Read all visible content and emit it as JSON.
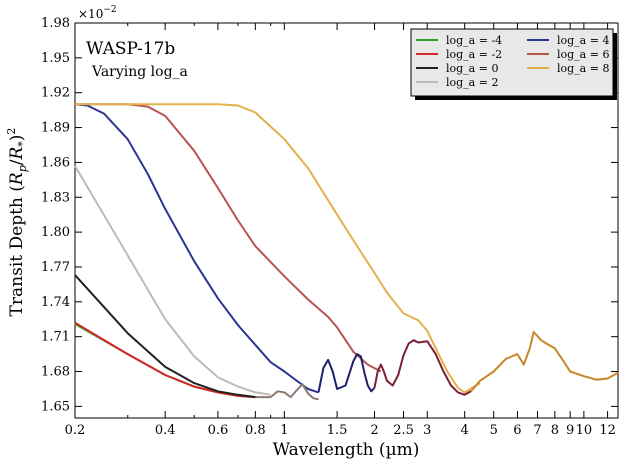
{
  "chart_data": {
    "type": "line",
    "title": "WASP-17b",
    "subtitle": "Varying log_a",
    "xlabel": "Wavelength (µm)",
    "ylabel": "Transit Depth (R_p/R_*)^2",
    "y_multiplier": "×10^-2",
    "xscale": "log",
    "xlim": [
      0.2,
      13
    ],
    "ylim": [
      1.64,
      1.98
    ],
    "xticks": [
      0.2,
      0.4,
      0.6,
      0.8,
      1,
      1.5,
      2,
      2.5,
      3,
      4,
      5,
      6,
      7,
      8,
      9,
      10,
      12
    ],
    "xtick_labels": [
      "0.2",
      "0.4",
      "0.6",
      "0.8",
      "1",
      "1.5",
      "2",
      "2.5",
      "3",
      "4",
      "5",
      "6",
      "7",
      "8",
      "9",
      "10",
      "12"
    ],
    "yticks": [
      1.65,
      1.68,
      1.71,
      1.74,
      1.77,
      1.8,
      1.83,
      1.86,
      1.89,
      1.92,
      1.95,
      1.98
    ],
    "ytick_labels": [
      "1.65",
      "1.68",
      "1.71",
      "1.74",
      "1.77",
      "1.80",
      "1.83",
      "1.86",
      "1.89",
      "1.92",
      "1.95",
      "1.98"
    ],
    "grid": false,
    "legend": {
      "placement": "top-right",
      "columns": 2
    },
    "series": [
      {
        "name": "log_a = -4",
        "color": "#2ca02c",
        "points": [
          [
            0.2,
            1.721
          ],
          [
            0.3,
            1.695
          ],
          [
            0.4,
            1.677
          ],
          [
            0.5,
            1.667
          ],
          [
            0.6,
            1.662
          ],
          [
            0.7,
            1.659
          ],
          [
            0.8,
            1.658
          ]
        ]
      },
      {
        "name": "log_a = -2",
        "color": "#d62728",
        "points": [
          [
            0.2,
            1.722
          ],
          [
            0.3,
            1.695
          ],
          [
            0.4,
            1.677
          ],
          [
            0.5,
            1.667
          ],
          [
            0.6,
            1.662
          ],
          [
            0.7,
            1.659
          ],
          [
            0.8,
            1.658
          ]
        ]
      },
      {
        "name": "log_a = 0",
        "color": "#222222",
        "points": [
          [
            0.2,
            1.763
          ],
          [
            0.3,
            1.713
          ],
          [
            0.4,
            1.684
          ],
          [
            0.5,
            1.67
          ],
          [
            0.6,
            1.663
          ],
          [
            0.7,
            1.66
          ],
          [
            0.8,
            1.658
          ]
        ]
      },
      {
        "name": "log_a = 2",
        "color": "#bbbbbb",
        "points": [
          [
            0.2,
            1.857
          ],
          [
            0.3,
            1.78
          ],
          [
            0.4,
            1.725
          ],
          [
            0.5,
            1.693
          ],
          [
            0.6,
            1.675
          ],
          [
            0.7,
            1.667
          ],
          [
            0.8,
            1.662
          ],
          [
            0.9,
            1.66
          ]
        ]
      },
      {
        "name": "log_a = 4",
        "color": "#2c3590",
        "points": [
          [
            0.2,
            1.91
          ],
          [
            0.22,
            1.909
          ],
          [
            0.25,
            1.902
          ],
          [
            0.3,
            1.88
          ],
          [
            0.35,
            1.85
          ],
          [
            0.4,
            1.82
          ],
          [
            0.5,
            1.775
          ],
          [
            0.6,
            1.743
          ],
          [
            0.7,
            1.72
          ],
          [
            0.8,
            1.703
          ],
          [
            0.9,
            1.688
          ],
          [
            1.0,
            1.68
          ],
          [
            1.1,
            1.672
          ],
          [
            1.2,
            1.665
          ],
          [
            1.3,
            1.662
          ]
        ]
      },
      {
        "name": "log_a = 6",
        "color": "#b85450",
        "points": [
          [
            0.2,
            1.91
          ],
          [
            0.3,
            1.91
          ],
          [
            0.35,
            1.908
          ],
          [
            0.4,
            1.9
          ],
          [
            0.5,
            1.87
          ],
          [
            0.6,
            1.838
          ],
          [
            0.7,
            1.81
          ],
          [
            0.8,
            1.788
          ],
          [
            1.0,
            1.762
          ],
          [
            1.2,
            1.742
          ],
          [
            1.4,
            1.727
          ],
          [
            1.5,
            1.718
          ],
          [
            1.7,
            1.697
          ],
          [
            1.9,
            1.686
          ],
          [
            2.1,
            1.68
          ]
        ]
      },
      {
        "name": "log_a = 8",
        "color": "#e3b14a",
        "points": [
          [
            0.2,
            1.91
          ],
          [
            0.4,
            1.91
          ],
          [
            0.6,
            1.91
          ],
          [
            0.7,
            1.909
          ],
          [
            0.8,
            1.903
          ],
          [
            1.0,
            1.88
          ],
          [
            1.2,
            1.855
          ],
          [
            1.5,
            1.815
          ],
          [
            1.8,
            1.783
          ],
          [
            2.0,
            1.765
          ],
          [
            2.2,
            1.748
          ],
          [
            2.5,
            1.73
          ],
          [
            2.8,
            1.724
          ],
          [
            3.0,
            1.715
          ],
          [
            3.2,
            1.7
          ],
          [
            3.5,
            1.68
          ],
          [
            3.8,
            1.666
          ],
          [
            4.0,
            1.662
          ],
          [
            4.5,
            1.67
          ]
        ]
      },
      {
        "name": "",
        "color": "#8a7a70",
        "points": [
          [
            0.8,
            1.658
          ],
          [
            0.9,
            1.658
          ],
          [
            0.95,
            1.663
          ],
          [
            1.0,
            1.662
          ],
          [
            1.05,
            1.658
          ],
          [
            1.1,
            1.664
          ],
          [
            1.15,
            1.669
          ],
          [
            1.2,
            1.661
          ],
          [
            1.25,
            1.657
          ],
          [
            1.3,
            1.656
          ]
        ]
      },
      {
        "name": "",
        "color": "#1f1f72",
        "points": [
          [
            1.3,
            1.662
          ],
          [
            1.35,
            1.683
          ],
          [
            1.4,
            1.69
          ],
          [
            1.45,
            1.68
          ],
          [
            1.5,
            1.665
          ],
          [
            1.6,
            1.668
          ],
          [
            1.7,
            1.689
          ],
          [
            1.75,
            1.695
          ],
          [
            1.8,
            1.693
          ],
          [
            1.85,
            1.679
          ],
          [
            1.9,
            1.668
          ],
          [
            1.95,
            1.663
          ],
          [
            2.0,
            1.666
          ]
        ]
      },
      {
        "name": "",
        "color": "#7a2035",
        "points": [
          [
            2.0,
            1.666
          ],
          [
            2.05,
            1.68
          ],
          [
            2.1,
            1.686
          ],
          [
            2.15,
            1.68
          ],
          [
            2.2,
            1.672
          ],
          [
            2.3,
            1.668
          ],
          [
            2.4,
            1.677
          ],
          [
            2.5,
            1.694
          ],
          [
            2.6,
            1.704
          ],
          [
            2.7,
            1.707
          ],
          [
            2.8,
            1.705
          ],
          [
            3.0,
            1.706
          ],
          [
            3.2,
            1.695
          ],
          [
            3.4,
            1.68
          ],
          [
            3.6,
            1.668
          ],
          [
            3.8,
            1.662
          ],
          [
            4.0,
            1.66
          ],
          [
            4.2,
            1.663
          ]
        ]
      },
      {
        "name": "",
        "color": "#c8862a",
        "points": [
          [
            4.2,
            1.663
          ],
          [
            4.5,
            1.672
          ],
          [
            5.0,
            1.68
          ],
          [
            5.5,
            1.691
          ],
          [
            6.0,
            1.695
          ],
          [
            6.3,
            1.686
          ],
          [
            6.6,
            1.7
          ],
          [
            6.8,
            1.714
          ],
          [
            7.2,
            1.707
          ],
          [
            7.5,
            1.704
          ],
          [
            8.0,
            1.7
          ],
          [
            8.5,
            1.69
          ],
          [
            9.0,
            1.68
          ],
          [
            10.0,
            1.676
          ],
          [
            11.0,
            1.673
          ],
          [
            12.0,
            1.674
          ],
          [
            13.0,
            1.679
          ]
        ]
      }
    ]
  }
}
